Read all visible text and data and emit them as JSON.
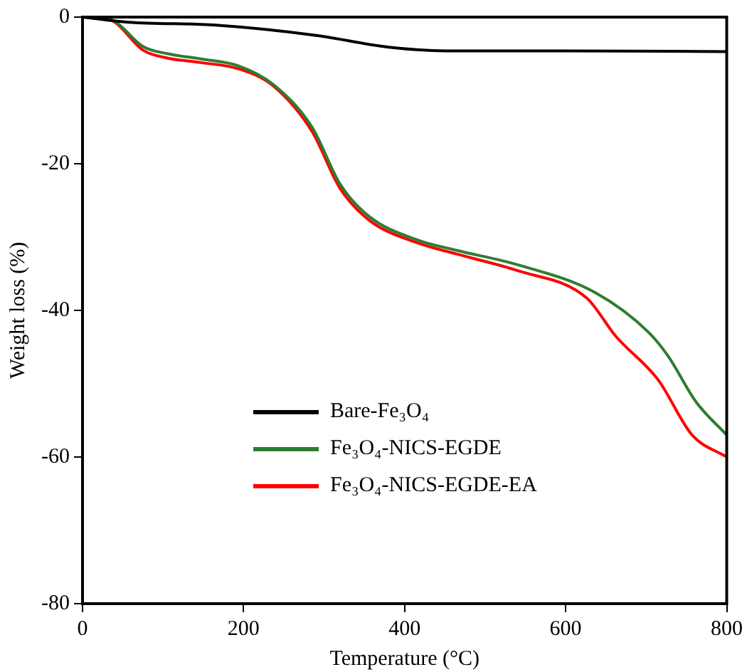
{
  "chart_data": {
    "type": "line",
    "xlabel": "Temperature (°C)",
    "ylabel": "Weight loss (%)",
    "xlim": [
      0,
      800
    ],
    "xticks": [
      0,
      200,
      400,
      600,
      800
    ],
    "ylim": [
      -80,
      0
    ],
    "yticks": [
      0,
      -20,
      -40,
      -60,
      -80
    ],
    "grid": false,
    "legend": "bottom",
    "marker": "none",
    "line_style": "solid",
    "series": [
      {
        "name": "Bare-Fe₃O₄",
        "color": "#000000",
        "x": [
          0,
          57,
          165,
          290,
          380,
          450,
          600,
          800
        ],
        "values": [
          0,
          -0.7,
          -1.1,
          -2.5,
          -4.1,
          -4.6,
          -4.6,
          -4.7
        ]
      },
      {
        "name": "Fe₃O₄-NICS-EGDE",
        "color": "#2e7d32",
        "x": [
          0,
          13,
          39,
          75,
          106,
          147,
          195,
          237,
          285,
          320,
          356,
          416,
          464,
          541,
          637,
          703,
          727,
          762,
          800
        ],
        "values": [
          0,
          0,
          -0.5,
          -4.0,
          -5.0,
          -5.7,
          -6.7,
          -9.2,
          -15,
          -22.8,
          -27.2,
          -30.4,
          -31.8,
          -33.8,
          -37.6,
          -43,
          -46.2,
          -52.5,
          -57
        ]
      },
      {
        "name": "Fe₃O₄-NICS-EGDE-EA",
        "color": "#ff0000",
        "x": [
          0,
          13,
          39,
          75,
          106,
          147,
          195,
          237,
          285,
          320,
          356,
          416,
          464,
          541,
          626,
          662,
          715,
          757,
          800
        ],
        "values": [
          0,
          0,
          -0.6,
          -4.5,
          -5.6,
          -6.2,
          -7.1,
          -9.4,
          -15.6,
          -23.4,
          -27.7,
          -30.8,
          -32.3,
          -34.6,
          -38.3,
          -43.5,
          -49.5,
          -57,
          -60
        ]
      }
    ]
  }
}
